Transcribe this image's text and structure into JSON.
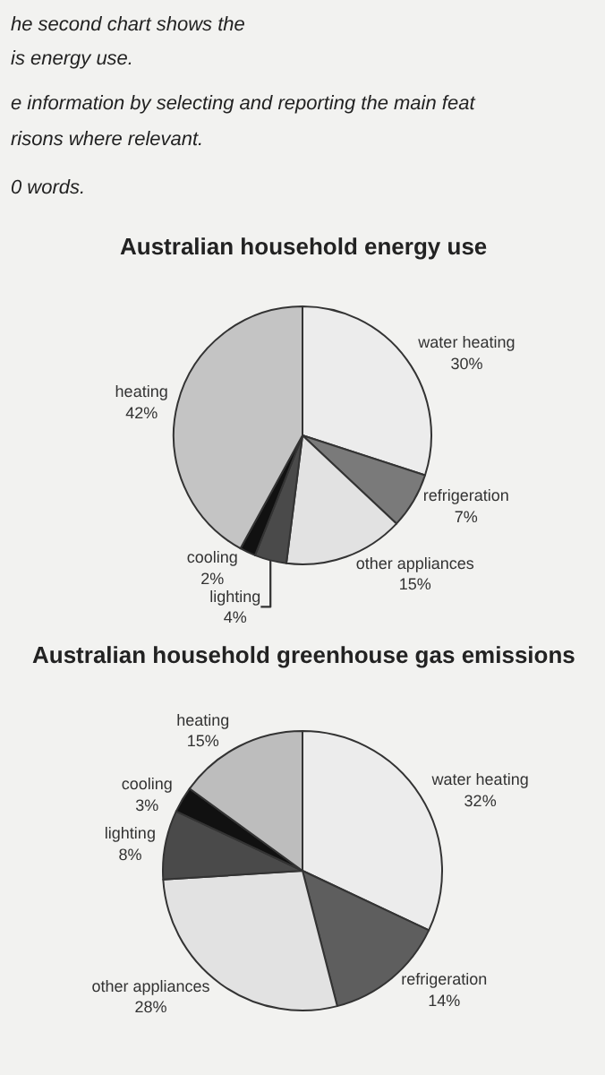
{
  "chart_data": [
    {
      "type": "pie",
      "title": "Australian household energy use",
      "annotations": [
        "he second chart shows the",
        "is energy use.",
        "e information by selecting and reporting the main feat",
        "risons where relevant.",
        "0 words."
      ],
      "categories": [
        "water heating",
        "refrigeration",
        "other appliances",
        "lighting",
        "cooling",
        "heating"
      ],
      "values": [
        30,
        7,
        15,
        4,
        2,
        42
      ],
      "value_labels": [
        "30%",
        "7%",
        "15%",
        "4%",
        "2%",
        "42%"
      ],
      "colors": [
        "#ececec",
        "#7a7a7a",
        "#e2e2e2",
        "#4a4a4a",
        "#111111",
        "#c4c4c4"
      ]
    },
    {
      "type": "pie",
      "title": "Australian household greenhouse gas emissions",
      "categories": [
        "water heating",
        "refrigeration",
        "other appliances",
        "lighting",
        "cooling",
        "heating"
      ],
      "values": [
        32,
        14,
        28,
        8,
        3,
        15
      ],
      "value_labels": [
        "32%",
        "14%",
        "28%",
        "8%",
        "3%",
        "15%"
      ],
      "colors": [
        "#ececec",
        "#5e5e5e",
        "#e2e2e2",
        "#4a4a4a",
        "#111111",
        "#bdbdbd"
      ]
    }
  ]
}
